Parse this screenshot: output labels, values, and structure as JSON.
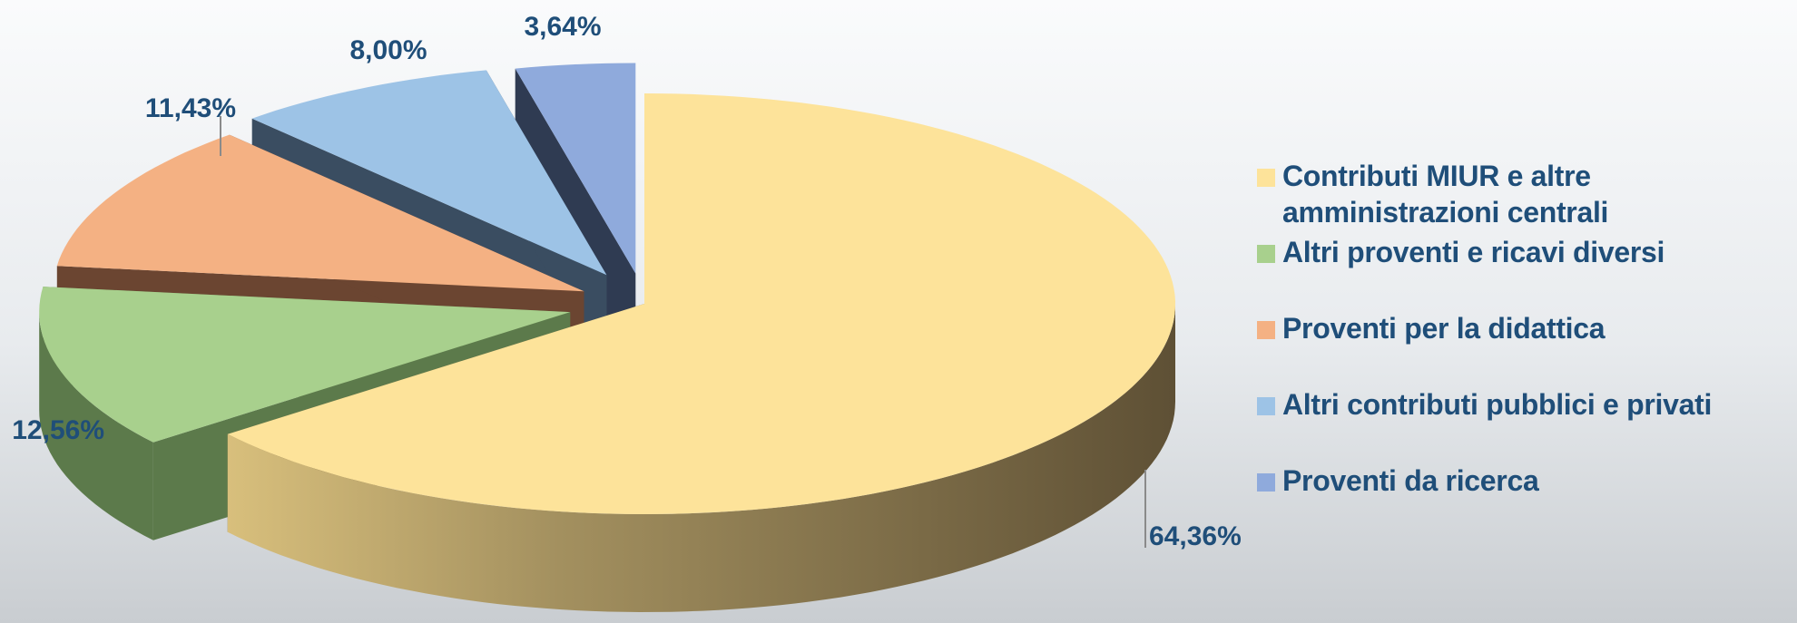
{
  "chart_data": {
    "type": "pie",
    "title": "",
    "slices": [
      {
        "label": "Contributi MIUR e altre amministrazioni centrali",
        "value": 64.36,
        "value_label": "64,36%",
        "color": "#fde39a",
        "side_color": "#6b5a37"
      },
      {
        "label": "Altri proventi e ricavi diversi",
        "value": 12.56,
        "value_label": "12,56%",
        "color": "#a8d08d",
        "side_color": "#5c7a4b"
      },
      {
        "label": "Proventi per la didattica",
        "value": 11.43,
        "value_label": "11,43%",
        "color": "#f4b183",
        "side_color": "#6b4531"
      },
      {
        "label": "Altri contributi pubblici e privati",
        "value": 8.0,
        "value_label": "8,00%",
        "color": "#9dc3e6",
        "side_color": "#3a4d61"
      },
      {
        "label": "Proventi da ricerca",
        "value": 3.64,
        "value_label": "3,64%",
        "color": "#8faadc",
        "side_color": "#2f3b52"
      }
    ],
    "legend_position": "right",
    "exploded": true,
    "three_d": true
  }
}
